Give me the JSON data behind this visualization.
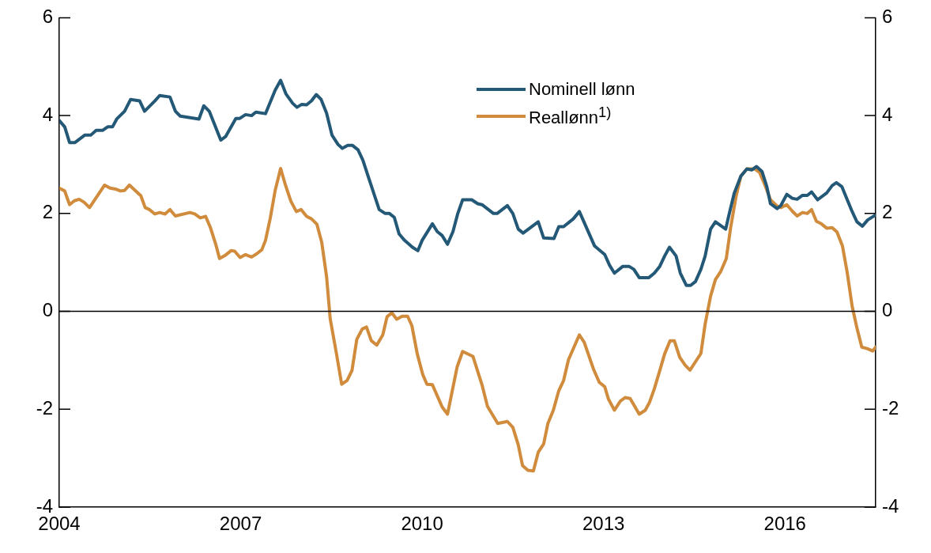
{
  "chart_data": {
    "type": "line",
    "xlim": [
      2004,
      2017.5
    ],
    "xticks": [
      2004,
      2007,
      2010,
      2013,
      2016
    ],
    "ylim": [
      -4,
      6
    ],
    "yticks": [
      -4,
      -2,
      0,
      2,
      4,
      6
    ],
    "y2lim": [
      -4,
      6
    ],
    "y2ticks": [
      -4,
      -2,
      0,
      2,
      4,
      6
    ],
    "grid": false,
    "legend": "top",
    "marker": "none",
    "line_style": "solid",
    "ref_lines": [
      {
        "axis": "y",
        "value": 0,
        "color": "#000000"
      }
    ],
    "series": [
      {
        "name": "Nominell lønn",
        "color": "#245877",
        "x": [
          2004.0,
          2004.09,
          2004.17,
          2004.26,
          2004.42,
          2004.52,
          2004.61,
          2004.72,
          2004.8,
          2004.88,
          2004.95,
          2005.08,
          2005.18,
          2005.33,
          2005.41,
          2005.58,
          2005.66,
          2005.83,
          2005.92,
          2006.0,
          2006.31,
          2006.39,
          2006.48,
          2006.67,
          2006.75,
          2006.92,
          2006.98,
          2007.08,
          2007.18,
          2007.25,
          2007.41,
          2007.57,
          2007.66,
          2007.75,
          2007.86,
          2007.93,
          2008.01,
          2008.09,
          2008.17,
          2008.25,
          2008.33,
          2008.42,
          2008.51,
          2008.61,
          2008.68,
          2008.77,
          2008.85,
          2008.94,
          2009.02,
          2009.11,
          2009.29,
          2009.39,
          2009.46,
          2009.54,
          2009.62,
          2009.71,
          2009.84,
          2009.93,
          2010.0,
          2010.17,
          2010.25,
          2010.33,
          2010.42,
          2010.51,
          2010.59,
          2010.67,
          2010.82,
          2010.92,
          2010.99,
          2011.18,
          2011.24,
          2011.41,
          2011.5,
          2011.59,
          2011.67,
          2011.92,
          2012.01,
          2012.18,
          2012.26,
          2012.34,
          2012.5,
          2012.6,
          2012.85,
          2013.02,
          2013.1,
          2013.18,
          2013.32,
          2013.42,
          2013.5,
          2013.59,
          2013.75,
          2013.84,
          2013.93,
          2014.01,
          2014.09,
          2014.2,
          2014.27,
          2014.37,
          2014.44,
          2014.52,
          2014.61,
          2014.68,
          2014.77,
          2014.85,
          2015.02,
          2015.07,
          2015.16,
          2015.27,
          2015.37,
          2015.45,
          2015.53,
          2015.62,
          2015.7,
          2015.76,
          2015.87,
          2015.93,
          2016.03,
          2016.12,
          2016.2,
          2016.29,
          2016.37,
          2016.44,
          2016.54,
          2016.69,
          2016.78,
          2016.85,
          2016.94,
          2017.1,
          2017.19,
          2017.28,
          2017.37,
          2017.5
        ],
        "values": [
          3.9,
          3.77,
          3.45,
          3.45,
          3.6,
          3.6,
          3.7,
          3.7,
          3.77,
          3.77,
          3.93,
          4.09,
          4.33,
          4.3,
          4.09,
          4.3,
          4.41,
          4.38,
          4.09,
          3.99,
          3.93,
          4.2,
          4.09,
          3.5,
          3.57,
          3.94,
          3.94,
          4.02,
          4.0,
          4.07,
          4.04,
          4.52,
          4.72,
          4.44,
          4.25,
          4.17,
          4.23,
          4.22,
          4.3,
          4.43,
          4.33,
          4.05,
          3.6,
          3.41,
          3.33,
          3.39,
          3.39,
          3.3,
          3.09,
          2.75,
          2.08,
          2.0,
          2.0,
          1.92,
          1.58,
          1.45,
          1.31,
          1.24,
          1.45,
          1.79,
          1.63,
          1.55,
          1.37,
          1.63,
          2.0,
          2.28,
          2.28,
          2.2,
          2.18,
          2.0,
          2.0,
          2.16,
          2.0,
          1.68,
          1.6,
          1.83,
          1.5,
          1.49,
          1.73,
          1.73,
          1.89,
          2.04,
          1.34,
          1.16,
          0.94,
          0.78,
          0.92,
          0.92,
          0.86,
          0.69,
          0.69,
          0.78,
          0.92,
          1.13,
          1.31,
          1.13,
          0.78,
          0.53,
          0.53,
          0.61,
          0.86,
          1.13,
          1.68,
          1.83,
          1.68,
          1.95,
          2.41,
          2.76,
          2.91,
          2.89,
          2.96,
          2.86,
          2.55,
          2.2,
          2.1,
          2.16,
          2.39,
          2.31,
          2.29,
          2.37,
          2.37,
          2.44,
          2.28,
          2.42,
          2.57,
          2.63,
          2.55,
          2.07,
          1.83,
          1.74,
          1.87,
          1.97
        ]
      },
      {
        "name": "Reallønn$^{1)}$",
        "color": "#d08c3c",
        "x": [
          2004.0,
          2004.09,
          2004.17,
          2004.25,
          2004.33,
          2004.41,
          2004.5,
          2004.75,
          2004.84,
          2004.93,
          2005.01,
          2005.08,
          2005.16,
          2005.35,
          2005.42,
          2005.49,
          2005.58,
          2005.66,
          2005.75,
          2005.83,
          2005.92,
          2006.16,
          2006.24,
          2006.33,
          2006.42,
          2006.5,
          2006.59,
          2006.65,
          2006.75,
          2006.84,
          2006.9,
          2006.99,
          2007.08,
          2007.18,
          2007.27,
          2007.35,
          2007.41,
          2007.49,
          2007.57,
          2007.66,
          2007.74,
          2007.83,
          2007.92,
          2008.0,
          2008.09,
          2008.17,
          2008.26,
          2008.34,
          2008.42,
          2008.48,
          2008.58,
          2008.67,
          2008.76,
          2008.84,
          2008.92,
          2009.01,
          2009.08,
          2009.16,
          2009.25,
          2009.35,
          2009.42,
          2009.5,
          2009.58,
          2009.67,
          2009.76,
          2009.83,
          2009.92,
          2010.01,
          2010.08,
          2010.17,
          2010.33,
          2010.42,
          2010.58,
          2010.67,
          2010.84,
          2010.99,
          2011.08,
          2011.25,
          2011.41,
          2011.5,
          2011.59,
          2011.66,
          2011.75,
          2011.84,
          2011.92,
          2012.01,
          2012.08,
          2012.17,
          2012.26,
          2012.34,
          2012.42,
          2012.6,
          2012.68,
          2012.84,
          2012.93,
          2013.02,
          2013.08,
          2013.18,
          2013.28,
          2013.36,
          2013.44,
          2013.59,
          2013.69,
          2013.76,
          2013.84,
          2013.93,
          2014.01,
          2014.1,
          2014.17,
          2014.26,
          2014.35,
          2014.43,
          2014.51,
          2014.61,
          2014.68,
          2014.77,
          2014.85,
          2014.94,
          2015.03,
          2015.1,
          2015.19,
          2015.27,
          2015.37,
          2015.5,
          2015.58,
          2015.67,
          2015.76,
          2015.87,
          2015.93,
          2016.03,
          2016.12,
          2016.2,
          2016.29,
          2016.37,
          2016.44,
          2016.52,
          2016.6,
          2016.69,
          2016.78,
          2016.86,
          2016.95,
          2017.03,
          2017.11,
          2017.19,
          2017.27,
          2017.36,
          2017.45,
          2017.5
        ],
        "values": [
          2.52,
          2.46,
          2.18,
          2.26,
          2.29,
          2.23,
          2.12,
          2.58,
          2.52,
          2.5,
          2.46,
          2.47,
          2.58,
          2.36,
          2.12,
          2.08,
          1.99,
          2.02,
          1.99,
          2.08,
          1.95,
          2.02,
          1.99,
          1.91,
          1.94,
          1.71,
          1.36,
          1.08,
          1.15,
          1.24,
          1.23,
          1.1,
          1.16,
          1.11,
          1.18,
          1.26,
          1.45,
          1.91,
          2.47,
          2.92,
          2.58,
          2.25,
          2.04,
          2.08,
          1.94,
          1.89,
          1.78,
          1.41,
          0.71,
          -0.15,
          -0.84,
          -1.49,
          -1.41,
          -1.21,
          -0.57,
          -0.36,
          -0.32,
          -0.6,
          -0.69,
          -0.48,
          -0.11,
          -0.03,
          -0.16,
          -0.1,
          -0.1,
          -0.29,
          -0.87,
          -1.29,
          -1.49,
          -1.5,
          -1.95,
          -2.1,
          -1.13,
          -0.82,
          -0.92,
          -1.5,
          -1.94,
          -2.29,
          -2.25,
          -2.37,
          -2.73,
          -3.15,
          -3.25,
          -3.26,
          -2.88,
          -2.71,
          -2.29,
          -2.02,
          -1.62,
          -1.41,
          -0.99,
          -0.48,
          -0.63,
          -1.2,
          -1.45,
          -1.54,
          -1.79,
          -2.02,
          -1.83,
          -1.76,
          -1.78,
          -2.1,
          -2.02,
          -1.86,
          -1.58,
          -1.21,
          -0.87,
          -0.6,
          -0.6,
          -0.94,
          -1.1,
          -1.2,
          -1.05,
          -0.86,
          -0.26,
          0.31,
          0.65,
          0.82,
          1.08,
          1.7,
          2.34,
          2.76,
          2.91,
          2.91,
          2.84,
          2.58,
          2.28,
          2.15,
          2.12,
          2.18,
          2.05,
          1.95,
          2.02,
          2.0,
          2.08,
          1.84,
          1.79,
          1.7,
          1.71,
          1.62,
          1.34,
          0.79,
          0.11,
          -0.34,
          -0.73,
          -0.76,
          -0.81,
          -0.73
        ]
      }
    ]
  }
}
